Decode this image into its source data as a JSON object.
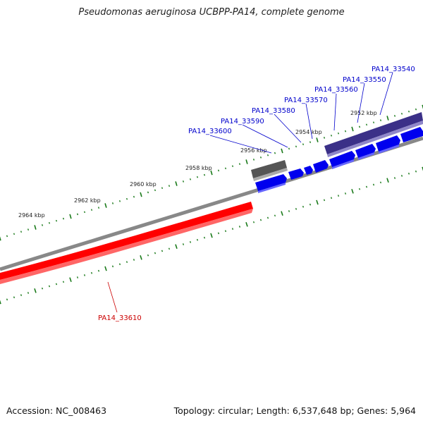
{
  "title": "Pseudomonas aeruginosa UCBPP-PA14, complete genome",
  "footer": {
    "accession": "Accession: NC_008463",
    "summary": "Topology: circular; Length: 6,537,648 bp; Genes: 5,964"
  },
  "ruler": {
    "labels": [
      "2952 kbp",
      "2954 kbp",
      "2956 kbp",
      "2958 kbp",
      "2960 kbp",
      "2962 kbp",
      "2964 kbp"
    ]
  },
  "genes": {
    "forward": [
      {
        "label": "PA14_33540",
        "color": "#0000cc"
      },
      {
        "label": "PA14_33550",
        "color": "#0000cc"
      },
      {
        "label": "PA14_33560",
        "color": "#0000cc"
      },
      {
        "label": "PA14_33570",
        "color": "#0000cc"
      },
      {
        "label": "PA14_33580",
        "color": "#0000cc"
      },
      {
        "label": "PA14_33590",
        "color": "#0000cc"
      },
      {
        "label": "PA14_33600",
        "color": "#0000cc"
      }
    ],
    "reverse": [
      {
        "label": "PA14_33610",
        "color": "#cc0000"
      }
    ]
  },
  "colors": {
    "forward_gene": "#0000ff",
    "reverse_gene": "#ff0000",
    "forward_feature": "#4b3f99",
    "gray_feature": "#666666",
    "backbone": "#888888",
    "ticks": "#1a7a1a"
  }
}
